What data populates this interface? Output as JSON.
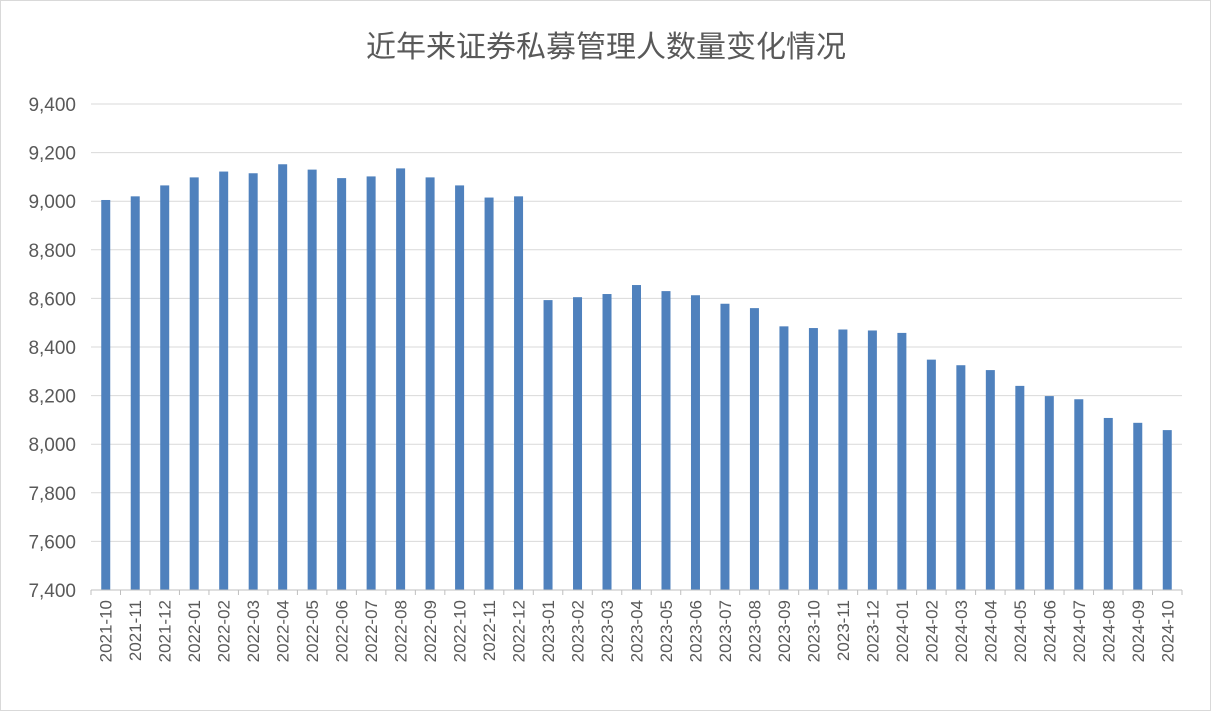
{
  "chart_data": {
    "type": "bar",
    "title": "近年来证券私募管理人数量变化情况",
    "xlabel": "",
    "ylabel": "",
    "ylim": [
      7400,
      9400
    ],
    "ytick_step": 200,
    "y_tick_labels": [
      "7,400",
      "7,600",
      "7,800",
      "8,000",
      "8,200",
      "8,400",
      "8,600",
      "8,800",
      "9,000",
      "9,200",
      "9,400"
    ],
    "grid": true,
    "legend": "none",
    "bar_color": "#4f81bd",
    "categories": [
      "2021-10",
      "2021-11",
      "2021-12",
      "2022-01",
      "2022-02",
      "2022-03",
      "2022-04",
      "2022-05",
      "2022-06",
      "2022-07",
      "2022-08",
      "2022-09",
      "2022-10",
      "2022-11",
      "2022-12",
      "2023-01",
      "2023-02",
      "2023-03",
      "2023-04",
      "2023-05",
      "2023-06",
      "2023-07",
      "2023-08",
      "2023-09",
      "2023-10",
      "2023-11",
      "2023-12",
      "2024-01",
      "2024-02",
      "2024-03",
      "2024-04",
      "2024-05",
      "2024-06",
      "2024-07",
      "2024-08",
      "2024-09",
      "2024-10"
    ],
    "values": [
      9005,
      9020,
      9065,
      9098,
      9122,
      9115,
      9152,
      9130,
      9095,
      9102,
      9135,
      9098,
      9065,
      9015,
      9020,
      8593,
      8605,
      8618,
      8655,
      8630,
      8613,
      8578,
      8560,
      8485,
      8478,
      8472,
      8468,
      8458,
      8348,
      8325,
      8305,
      8240,
      8198,
      8185,
      8108,
      8088,
      8058
    ]
  }
}
